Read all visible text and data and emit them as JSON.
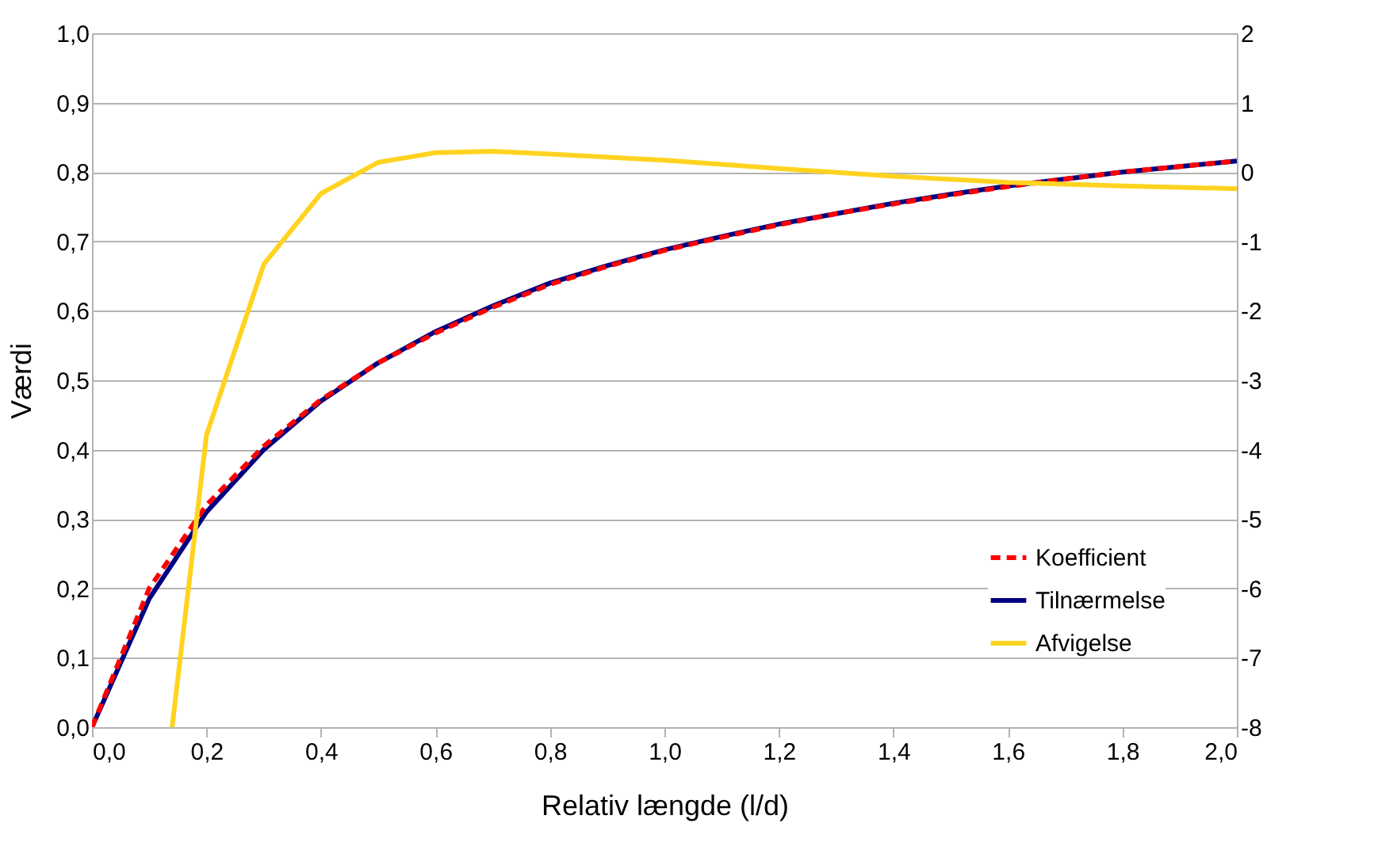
{
  "chart_data": {
    "type": "line",
    "xlabel": "Relativ længde (l/d)",
    "ylabel": "Værdi",
    "x": [
      0,
      0.1,
      0.2,
      0.3,
      0.4,
      0.5,
      0.6,
      0.7,
      0.8,
      0.9,
      1.0,
      1.1,
      1.2,
      1.3,
      1.4,
      1.5,
      1.6,
      1.7,
      1.8,
      1.9,
      2.0
    ],
    "series": [
      {
        "name": "Koefficient",
        "color": "#ff0000",
        "line_style": "dashed",
        "values": [
          0,
          0.2,
          0.32,
          0.405,
          0.472,
          0.525,
          0.568,
          0.605,
          0.638,
          0.664,
          0.687,
          0.706,
          0.724,
          0.74,
          0.754,
          0.767,
          0.779,
          0.79,
          0.8,
          0.808,
          0.816
        ]
      },
      {
        "name": "Tilnærmelse",
        "color": "#000080",
        "line_style": "solid",
        "values": [
          0,
          0.185,
          0.31,
          0.4,
          0.47,
          0.525,
          0.57,
          0.607,
          0.64,
          0.665,
          0.688,
          0.707,
          0.725,
          0.74,
          0.755,
          0.768,
          0.78,
          0.79,
          0.8,
          0.808,
          0.816
        ]
      },
      {
        "name": "Afvigelse",
        "color": "#ffd320",
        "line_style": "solid",
        "axis": "y2",
        "x": [
          0.14,
          0.2,
          0.3,
          0.4,
          0.5,
          0.6,
          0.7,
          0.8,
          1.0,
          1.2,
          1.4,
          1.6,
          1.8,
          2.0
        ],
        "values": [
          -8,
          -3.79,
          -1.33,
          -0.31,
          0.14,
          0.28,
          0.3,
          0.26,
          0.17,
          0.05,
          -0.06,
          -0.15,
          -0.2,
          -0.24
        ]
      }
    ],
    "xlim": [
      0,
      2
    ],
    "xticks": [
      {
        "value": 0,
        "label": "0,0"
      },
      {
        "value": 0.2,
        "label": "0,2"
      },
      {
        "value": 0.4,
        "label": "0,4"
      },
      {
        "value": 0.6,
        "label": "0,6"
      },
      {
        "value": 0.8,
        "label": "0,8"
      },
      {
        "value": 1.0,
        "label": "1,0"
      },
      {
        "value": 1.2,
        "label": "1,2"
      },
      {
        "value": 1.4,
        "label": "1,4"
      },
      {
        "value": 1.6,
        "label": "1,6"
      },
      {
        "value": 1.8,
        "label": "1,8"
      },
      {
        "value": 2.0,
        "label": "2,0"
      }
    ],
    "ylim": [
      0,
      1
    ],
    "yticks": [
      {
        "value": 0,
        "label": "0,0"
      },
      {
        "value": 0.1,
        "label": "0,1"
      },
      {
        "value": 0.2,
        "label": "0,2"
      },
      {
        "value": 0.3,
        "label": "0,3"
      },
      {
        "value": 0.4,
        "label": "0,4"
      },
      {
        "value": 0.5,
        "label": "0,5"
      },
      {
        "value": 0.6,
        "label": "0,6"
      },
      {
        "value": 0.7,
        "label": "0,7"
      },
      {
        "value": 0.8,
        "label": "0,8"
      },
      {
        "value": 0.9,
        "label": "0,9"
      },
      {
        "value": 1.0,
        "label": "1,0"
      }
    ],
    "y2lim": [
      -8,
      2
    ],
    "y2ticks": [
      -8,
      -7,
      -6,
      -5,
      -4,
      -3,
      -2,
      -1,
      0,
      1,
      2
    ],
    "grid": "y",
    "legend": "bottom right",
    "marker": "none"
  }
}
